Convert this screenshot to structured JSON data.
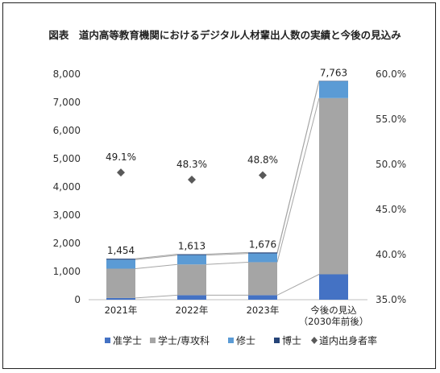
{
  "chart_data": {
    "type": "bar",
    "title": "図表　道内高等教育機関におけるデジタル人材輩出人数の実績と今後の見込み",
    "categories": [
      {
        "label": "2021年",
        "sub": ""
      },
      {
        "label": "2022年",
        "sub": ""
      },
      {
        "label": "2023年",
        "sub": ""
      },
      {
        "label": "今後の見込",
        "sub": "（2030年前後）"
      }
    ],
    "stack_order": [
      "准学士",
      "学士/専攻科",
      "修士",
      "博士"
    ],
    "series": [
      {
        "name": "准学士",
        "color": "#4472C4",
        "values": [
          60,
          160,
          160,
          900
        ]
      },
      {
        "name": "学士/専攻科",
        "color": "#A5A5A5",
        "values": [
          1040,
          1090,
          1170,
          6250
        ]
      },
      {
        "name": "修士",
        "color": "#5B9BD5",
        "values": [
          320,
          330,
          310,
          600
        ]
      },
      {
        "name": "博士",
        "color": "#264478",
        "values": [
          34,
          33,
          36,
          13
        ]
      }
    ],
    "totals": [
      1454,
      1613,
      1676,
      7763
    ],
    "total_labels": [
      "1,454",
      "1,613",
      "1,676",
      "7,763"
    ],
    "rate": {
      "name": "道内出身者率",
      "color": "#595959",
      "values": [
        49.1,
        48.3,
        48.8
      ],
      "labels": [
        "49.1%",
        "48.3%",
        "48.8%"
      ]
    },
    "y_left": {
      "min": 0,
      "max": 8000,
      "step": 1000,
      "tick_labels": [
        "0",
        "1,000",
        "2,000",
        "3,000",
        "4,000",
        "5,000",
        "6,000",
        "7,000",
        "8,000"
      ]
    },
    "y_right": {
      "min": 35,
      "max": 60,
      "step": 5,
      "tick_labels": [
        "35.0%",
        "40.0%",
        "45.0%",
        "50.0%",
        "55.0%",
        "60.0%"
      ]
    },
    "grid": false,
    "legend_position": "bottom"
  }
}
